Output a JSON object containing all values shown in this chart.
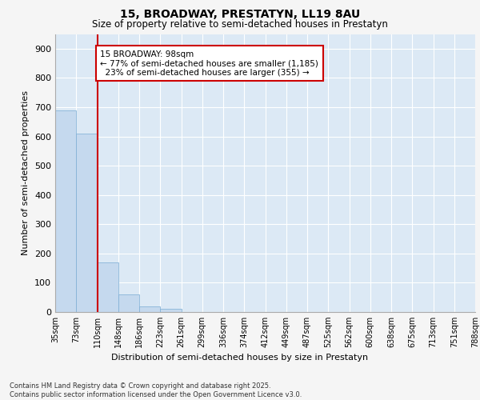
{
  "title": "15, BROADWAY, PRESTATYN, LL19 8AU",
  "subtitle": "Size of property relative to semi-detached houses in Prestatyn",
  "xlabel": "Distribution of semi-detached houses by size in Prestatyn",
  "ylabel": "Number of semi-detached properties",
  "bar_values": [
    690,
    610,
    170,
    60,
    20,
    10,
    0,
    0,
    0,
    0,
    0,
    0,
    0,
    0,
    0,
    0,
    0,
    0,
    0,
    0
  ],
  "bin_labels": [
    "35sqm",
    "73sqm",
    "110sqm",
    "148sqm",
    "186sqm",
    "223sqm",
    "261sqm",
    "299sqm",
    "336sqm",
    "374sqm",
    "412sqm",
    "449sqm",
    "487sqm",
    "525sqm",
    "562sqm",
    "600sqm",
    "638sqm",
    "675sqm",
    "713sqm",
    "751sqm",
    "788sqm"
  ],
  "bar_color": "#c5d9ee",
  "bar_edge_color": "#7aadd4",
  "vline_x": 2.0,
  "annotation_title": "15 BROADWAY: 98sqm",
  "annotation_line1": "← 77% of semi-detached houses are smaller (1,185)",
  "annotation_line2": "23% of semi-detached houses are larger (355) →",
  "annotation_box_color": "#cc0000",
  "ylim": [
    0,
    950
  ],
  "yticks": [
    0,
    100,
    200,
    300,
    400,
    500,
    600,
    700,
    800,
    900
  ],
  "footer_line1": "Contains HM Land Registry data © Crown copyright and database right 2025.",
  "footer_line2": "Contains public sector information licensed under the Open Government Licence v3.0.",
  "fig_bg_color": "#f5f5f5",
  "plot_bg_color": "#dce9f5",
  "grid_color": "#ffffff",
  "num_bins": 20
}
